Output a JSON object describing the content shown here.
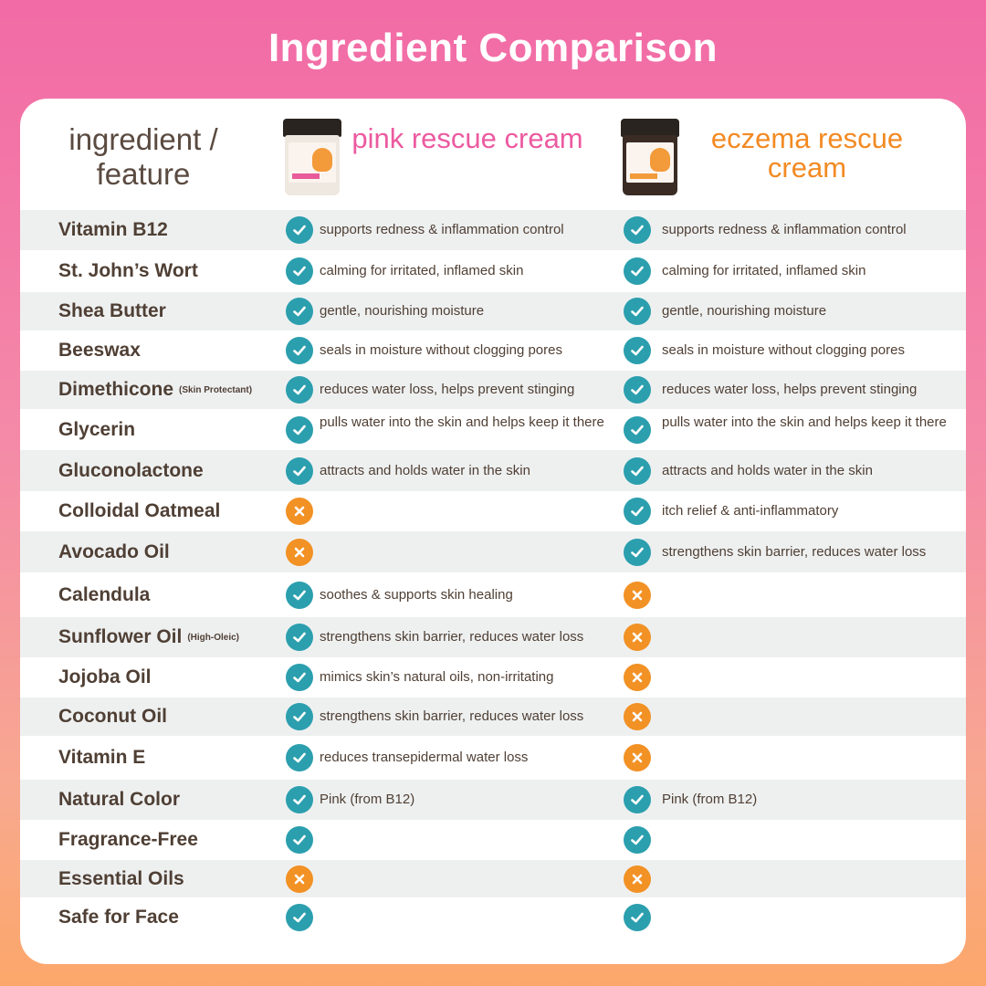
{
  "title": "Ingredient Comparison",
  "header": {
    "ingredient_label": "ingredient / feature",
    "product_a": "pink rescue cream",
    "product_b": "eczema rescue cream"
  },
  "colors": {
    "check": "#2b9fae",
    "cross": "#f29124",
    "pink_accent": "#ec5aa0",
    "orange_accent": "#f28a22",
    "text": "#4f3f34"
  },
  "rows": [
    {
      "name": "Vitamin B12",
      "note": "",
      "a": "check",
      "a_text": "supports redness & inflammation control",
      "b": "check",
      "b_text": "supports redness & inflammation control"
    },
    {
      "name": "St. John’s Wort",
      "note": "",
      "a": "check",
      "a_text": "calming for irritated, inflamed skin",
      "b": "check",
      "b_text": "calming for irritated, inflamed skin"
    },
    {
      "name": "Shea Butter",
      "note": "",
      "a": "check",
      "a_text": "gentle, nourishing moisture",
      "b": "check",
      "b_text": "gentle, nourishing moisture"
    },
    {
      "name": "Beeswax",
      "note": "",
      "a": "check",
      "a_text": "seals in moisture without clogging pores",
      "b": "check",
      "b_text": "seals in moisture without clogging pores"
    },
    {
      "name": "Dimethicone",
      "note": "(Skin Protectant)",
      "a": "check",
      "a_text": "reduces water loss, helps prevent stinging",
      "b": "check",
      "b_text": "reduces water loss, helps prevent stinging"
    },
    {
      "name": "Glycerin",
      "note": "",
      "a": "check",
      "a_text": "pulls water into the skin and helps keep it there",
      "b": "check",
      "b_text": "pulls water into the skin and helps keep it there"
    },
    {
      "name": "Gluconolactone",
      "note": "",
      "a": "check",
      "a_text": "attracts and holds water in the skin",
      "b": "check",
      "b_text": "attracts and holds water in the skin"
    },
    {
      "name": "Colloidal Oatmeal",
      "note": "",
      "a": "cross",
      "a_text": "",
      "b": "check",
      "b_text": "itch relief & anti-inflammatory"
    },
    {
      "name": "Avocado Oil",
      "note": "",
      "a": "cross",
      "a_text": "",
      "b": "check",
      "b_text": "strengthens skin barrier, reduces water loss"
    },
    {
      "name": "Calendula",
      "note": "",
      "a": "check",
      "a_text": "soothes & supports skin healing",
      "b": "cross",
      "b_text": ""
    },
    {
      "name": "Sunflower Oil",
      "note": "(High-Oleic)",
      "a": "check",
      "a_text": "strengthens skin barrier, reduces water loss",
      "b": "cross",
      "b_text": ""
    },
    {
      "name": "Jojoba Oil",
      "note": "",
      "a": "check",
      "a_text": "mimics skin’s natural oils, non-irritating",
      "b": "cross",
      "b_text": ""
    },
    {
      "name": "Coconut Oil",
      "note": "",
      "a": "check",
      "a_text": "strengthens skin barrier, reduces water loss",
      "b": "cross",
      "b_text": ""
    },
    {
      "name": "Vitamin E",
      "note": "",
      "a": "check",
      "a_text": "reduces transepidermal water loss",
      "b": "cross",
      "b_text": ""
    },
    {
      "name": "Natural Color",
      "note": "",
      "a": "check",
      "a_text": "Pink (from B12)",
      "b": "check",
      "b_text": "Pink (from B12)"
    },
    {
      "name": "Fragrance-Free",
      "note": "",
      "a": "check",
      "a_text": "",
      "b": "check",
      "b_text": ""
    },
    {
      "name": "Essential Oils",
      "note": "",
      "a": "cross",
      "a_text": "",
      "b": "cross",
      "b_text": ""
    },
    {
      "name": "Safe for Face",
      "note": "",
      "a": "check",
      "a_text": "",
      "b": "check",
      "b_text": ""
    }
  ]
}
